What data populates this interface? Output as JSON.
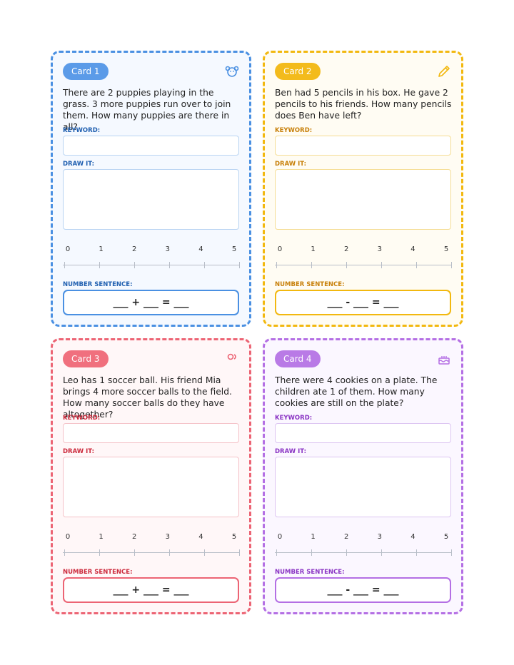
{
  "cards": [
    {
      "badge": "Card 1",
      "problem": "There are 2 puppies playing in the grass. 3 more puppies run over to join them. How many puppies are there in all?",
      "keyword_label": "KEYWORD:",
      "draw_label": "DRAW IT:",
      "number_line": [
        0,
        1,
        2,
        3,
        4,
        5
      ],
      "sentence_label": "NUMBER SENTENCE:",
      "equation": "___ + ___ = ___"
    },
    {
      "badge": "Card 2",
      "problem": "Ben had 5 pencils in his box. He gave 2 pencils to his friends. How many pencils does Ben have left?",
      "keyword_label": "KEYWORD:",
      "draw_label": "DRAW IT:",
      "number_line": [
        0,
        1,
        2,
        3,
        4,
        5
      ],
      "sentence_label": "NUMBER SENTENCE:",
      "equation": "___ - ___ = ___"
    },
    {
      "badge": "Card 3",
      "problem": "Leo has 1 soccer ball. His friend Mia brings 4 more soccer balls to the field. How many soccer balls do they have altogether?",
      "keyword_label": "KEYWORD:",
      "draw_label": "DRAW IT:",
      "number_line": [
        0,
        1,
        2,
        3,
        4,
        5
      ],
      "sentence_label": "NUMBER SENTENCE:",
      "equation": "___ + ___ = ___"
    },
    {
      "badge": "Card 4",
      "problem": "There were 4 cookies on a plate. The children ate 1 of them. How many cookies are still on the plate?",
      "keyword_label": "KEYWORD:",
      "draw_label": "DRAW IT:",
      "number_line": [
        0,
        1,
        2,
        3,
        4,
        5
      ],
      "sentence_label": "NUMBER SENTENCE:",
      "equation": "___ - ___ = ___"
    }
  ]
}
